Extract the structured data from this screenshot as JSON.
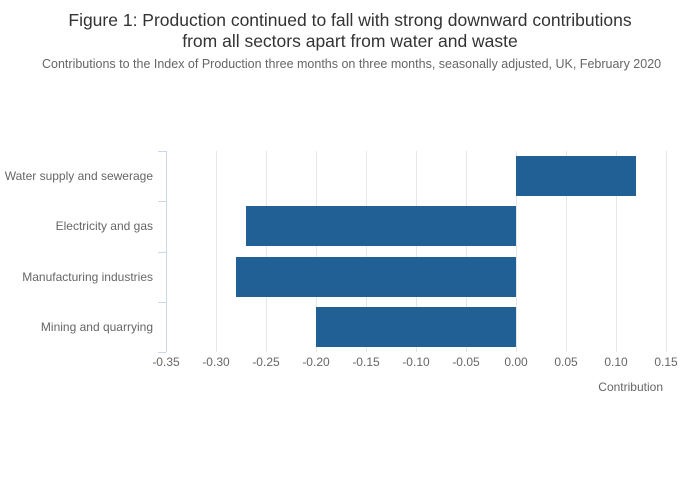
{
  "title": {
    "line1": "Figure 1: Production continued to fall with strong downward contributions",
    "line2": "from all sectors apart from water and waste"
  },
  "subtitle": "Contributions to the Index of Production three months on three months, seasonally adjusted, UK, February 2020",
  "chart_data": {
    "type": "bar",
    "orientation": "horizontal",
    "title": "Figure 1: Production continued to fall with strong downward contributions from all sectors apart from water and waste",
    "subtitle": "Contributions to the Index of Production three months on three months, seasonally adjusted, UK, February 2020",
    "categories": [
      "Water supply and sewerage",
      "Electricity and gas",
      "Manufacturing industries",
      "Mining and quarrying"
    ],
    "values": [
      0.12,
      -0.27,
      -0.28,
      -0.2
    ],
    "xlabel": "Contribution",
    "ylabel": "",
    "xlim": [
      -0.35,
      0.15
    ],
    "xticks": [
      -0.35,
      -0.3,
      -0.25,
      -0.2,
      -0.15,
      -0.1,
      -0.05,
      0,
      0.05,
      0.1,
      0.15
    ],
    "xtick_labels": [
      "-0.35",
      "-0.30",
      "-0.25",
      "-0.20",
      "-0.15",
      "-0.10",
      "-0.05",
      "0.00",
      "0.05",
      "0.10",
      "0.15"
    ],
    "grid": true,
    "legend": false
  },
  "colors": {
    "bar": "#206095",
    "grid": "#e6e6e6",
    "axis": "#ccd6eb",
    "title_text": "#333333",
    "label_text": "#666666"
  }
}
